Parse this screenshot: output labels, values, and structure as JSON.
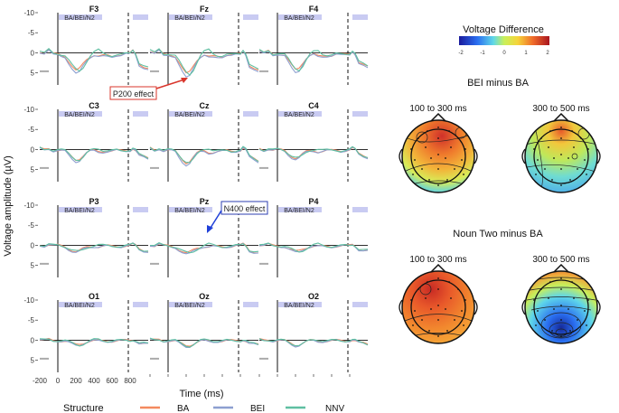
{
  "chart_data": {
    "type": "line",
    "title": "",
    "xlabel": "Time (ms)",
    "ylabel": "Voltage amplitude (µV)",
    "x_ticks": [
      "-200",
      "0",
      "200",
      "400",
      "600",
      "800"
    ],
    "y_ticks": [
      "-10",
      "-5",
      "0",
      "5"
    ],
    "xlim": [
      -200,
      1000
    ],
    "ylim": [
      -10,
      8
    ],
    "inverted_y": true,
    "window_label": "BA/BEI/N2",
    "channels": [
      "F3",
      "Fz",
      "F4",
      "C3",
      "Cz",
      "C4",
      "P3",
      "Pz",
      "P4",
      "O1",
      "Oz",
      "O2"
    ],
    "series": [
      {
        "name": "BA",
        "color": "#f4895f",
        "x": [
          -200,
          -150,
          -100,
          -50,
          0,
          40,
          80,
          120,
          160,
          200,
          240,
          280,
          320,
          360,
          400,
          450,
          500,
          550,
          600,
          650,
          700,
          750,
          800,
          830,
          860,
          900,
          950,
          1000
        ],
        "values": [
          -0.4,
          0.2,
          -0.5,
          0.3,
          0.2,
          0.4,
          0.8,
          2.2,
          3.6,
          4.6,
          4.0,
          2.6,
          1.4,
          0.8,
          0.6,
          1.0,
          0.8,
          0.6,
          0.7,
          0.5,
          0.6,
          0.4,
          0.2,
          -0.6,
          0.2,
          2.6,
          3.4,
          4.0
        ]
      },
      {
        "name": "BEI",
        "color": "#8d9fd0",
        "x": [
          -200,
          -150,
          -100,
          -50,
          0,
          40,
          80,
          120,
          160,
          200,
          240,
          280,
          320,
          360,
          400,
          450,
          500,
          550,
          600,
          650,
          700,
          750,
          800,
          830,
          860,
          900,
          950,
          1000
        ],
        "values": [
          -0.2,
          0.4,
          -0.4,
          0.5,
          0.3,
          0.6,
          1.0,
          2.8,
          4.4,
          5.4,
          4.8,
          3.0,
          1.6,
          1.0,
          0.7,
          1.2,
          1.0,
          0.8,
          0.8,
          0.6,
          0.8,
          0.5,
          0.3,
          -0.7,
          0.3,
          3.0,
          3.8,
          4.4
        ]
      },
      {
        "name": "NNV",
        "color": "#5fbfa1",
        "x": [
          -200,
          -150,
          -100,
          -50,
          0,
          40,
          80,
          120,
          160,
          200,
          240,
          280,
          320,
          360,
          400,
          450,
          500,
          550,
          600,
          650,
          700,
          750,
          800,
          830,
          860,
          900,
          950,
          1000
        ],
        "values": [
          -0.6,
          0.1,
          -0.7,
          0.2,
          0.1,
          0.3,
          0.6,
          1.8,
          3.2,
          4.2,
          4.6,
          3.6,
          2.0,
          0.6,
          -0.2,
          -0.6,
          0.2,
          0.5,
          0.6,
          0.4,
          0.5,
          0.3,
          0.1,
          -0.8,
          0.0,
          2.4,
          3.2,
          3.8
        ]
      }
    ],
    "legend_title": "Structure",
    "legend_position": "bottom",
    "annotations": [
      "P200 effect",
      "N400 effect"
    ],
    "topomaps": {
      "colorbar_title": "Voltage Difference",
      "colorbar_ticks": [
        "-2",
        "-1",
        "0",
        "1",
        "2"
      ],
      "colorbar_range": [
        -2,
        2
      ],
      "rows": [
        {
          "title": "BEI minus BA",
          "maps": [
            {
              "label": "100 to 300 ms",
              "peak": 1.2
            },
            {
              "label": "300 to 500 ms",
              "peak": 0.4
            }
          ]
        },
        {
          "title": "Noun Two minus BA",
          "maps": [
            {
              "label": "100 to 300 ms",
              "peak": 1.3
            },
            {
              "label": "300 to 500 ms",
              "peak": -1.6
            }
          ]
        }
      ]
    }
  }
}
